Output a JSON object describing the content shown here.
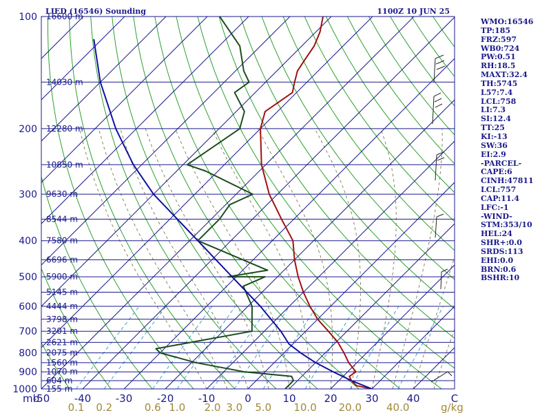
{
  "header": {
    "title": "LIED (16546) Sounding",
    "datetime": "1100Z 10 JUN 25"
  },
  "chart_data": {
    "type": "line",
    "diagram": "skew-T log-P",
    "pressure_axis": {
      "unit_label": "mb",
      "ticks": [
        100,
        200,
        300,
        400,
        500,
        600,
        700,
        800,
        900,
        1000
      ],
      "range": [
        1000,
        100
      ]
    },
    "temperature_axis": {
      "ticks": [
        -50,
        -40,
        -30,
        -20,
        -10,
        0,
        10,
        20,
        30,
        40
      ],
      "tick_labels": [
        "-50",
        "-40",
        "-30",
        "-20",
        "-10",
        "0",
        "10",
        "20",
        "30",
        "40"
      ],
      "last_label": "C"
    },
    "mixing_ratio_axis": {
      "unit_label": "g/kg",
      "ticks": [
        {
          "label": "0.1",
          "value": 0.1
        },
        {
          "label": "0.2",
          "value": 0.2
        },
        {
          "label": "0.6",
          "value": 0.6
        },
        {
          "label": "1.0",
          "value": 1.0
        },
        {
          "label": "2.0",
          "value": 2.0
        },
        {
          "label": "3.0",
          "value": 3.0
        },
        {
          "label": "5.0",
          "value": 5.0
        },
        {
          "label": "10.0",
          "value": 10.0
        },
        {
          "label": "20.0",
          "value": 20.0
        },
        {
          "label": "40.0",
          "value": 40.0
        }
      ]
    },
    "height_labels": [
      {
        "p": 100,
        "label": "16600 m"
      },
      {
        "p": 150,
        "label": "14030 m"
      },
      {
        "p": 200,
        "label": "12280 m"
      },
      {
        "p": 250,
        "label": "10850 m"
      },
      {
        "p": 300,
        "label": "9630 m"
      },
      {
        "p": 350,
        "label": "8544 m"
      },
      {
        "p": 400,
        "label": "7580 m"
      },
      {
        "p": 450,
        "label": "6696 m"
      },
      {
        "p": 500,
        "label": "5900 m"
      },
      {
        "p": 550,
        "label": "5145 m"
      },
      {
        "p": 600,
        "label": "4444 m"
      },
      {
        "p": 650,
        "label": "3798 m"
      },
      {
        "p": 700,
        "label": "3201 m"
      },
      {
        "p": 750,
        "label": "2621 m"
      },
      {
        "p": 800,
        "label": "2075 m"
      },
      {
        "p": 850,
        "label": "1560 m"
      },
      {
        "p": 900,
        "label": "1070 m"
      },
      {
        "p": 950,
        "label": "604 m"
      },
      {
        "p": 1000,
        "label": "155 m"
      }
    ],
    "series": [
      {
        "key": "temperature",
        "color": "#a01010",
        "points": [
          {
            "p": 1000,
            "t": 30.0
          },
          {
            "p": 980,
            "t": 25.5
          },
          {
            "p": 950,
            "t": 23.0
          },
          {
            "p": 925,
            "t": 21.5
          },
          {
            "p": 900,
            "t": 22.0
          },
          {
            "p": 850,
            "t": 18.0
          },
          {
            "p": 800,
            "t": 14.5
          },
          {
            "p": 750,
            "t": 10.5
          },
          {
            "p": 700,
            "t": 5.5
          },
          {
            "p": 650,
            "t": 0.0
          },
          {
            "p": 600,
            "t": -5.0
          },
          {
            "p": 550,
            "t": -10.0
          },
          {
            "p": 500,
            "t": -15.0
          },
          {
            "p": 450,
            "t": -20.0
          },
          {
            "p": 400,
            "t": -25.0
          },
          {
            "p": 350,
            "t": -33.0
          },
          {
            "p": 300,
            "t": -42.0
          },
          {
            "p": 250,
            "t": -51.0
          },
          {
            "p": 200,
            "t": -60.0
          },
          {
            "p": 180,
            "t": -63.0
          },
          {
            "p": 160,
            "t": -61.0
          },
          {
            "p": 150,
            "t": -63.0
          },
          {
            "p": 140,
            "t": -65.0
          },
          {
            "p": 130,
            "t": -66.0
          },
          {
            "p": 120,
            "t": -67.0
          },
          {
            "p": 110,
            "t": -69.0
          },
          {
            "p": 100,
            "t": -72.0
          }
        ]
      },
      {
        "key": "dewpoint",
        "color": "#1a4d1a",
        "points": [
          {
            "p": 1000,
            "t": 9.0
          },
          {
            "p": 950,
            "t": 9.0
          },
          {
            "p": 925,
            "t": 7.5
          },
          {
            "p": 900,
            "t": -5.0
          },
          {
            "p": 850,
            "t": -19.0
          },
          {
            "p": 800,
            "t": -30.0
          },
          {
            "p": 780,
            "t": -32.0
          },
          {
            "p": 700,
            "t": -13.0
          },
          {
            "p": 600,
            "t": -19.0
          },
          {
            "p": 530,
            "t": -26.0
          },
          {
            "p": 500,
            "t": -23.0
          },
          {
            "p": 500,
            "t": -32.0
          },
          {
            "p": 480,
            "t": -24.0
          },
          {
            "p": 400,
            "t": -48.0
          },
          {
            "p": 350,
            "t": -48.0
          },
          {
            "p": 320,
            "t": -49.0
          },
          {
            "p": 300,
            "t": -46.0
          },
          {
            "p": 260,
            "t": -63.0
          },
          {
            "p": 250,
            "t": -69.0
          },
          {
            "p": 200,
            "t": -65.0
          },
          {
            "p": 180,
            "t": -68.0
          },
          {
            "p": 160,
            "t": -75.0
          },
          {
            "p": 150,
            "t": -74.0
          },
          {
            "p": 140,
            "t": -78.0
          },
          {
            "p": 120,
            "t": -85.0
          },
          {
            "p": 100,
            "t": -97.0
          }
        ]
      },
      {
        "key": "parcel",
        "color": "#1010a0",
        "points": [
          {
            "p": 1000,
            "t": 30.0
          },
          {
            "p": 950,
            "t": 23.0
          },
          {
            "p": 900,
            "t": 16.5
          },
          {
            "p": 850,
            "t": 10.0
          },
          {
            "p": 800,
            "t": 4.0
          },
          {
            "p": 757,
            "t": -1.0
          },
          {
            "p": 700,
            "t": -6.0
          },
          {
            "p": 600,
            "t": -17.0
          },
          {
            "p": 500,
            "t": -31.0
          },
          {
            "p": 400,
            "t": -48.0
          },
          {
            "p": 300,
            "t": -70.0
          },
          {
            "p": 250,
            "t": -82.0
          },
          {
            "p": 200,
            "t": -95.0
          },
          {
            "p": 150,
            "t": -110.0
          },
          {
            "p": 115,
            "t": -122.0
          }
        ]
      }
    ],
    "wind_barbs_present": true,
    "colors": {
      "isobar": "#1a1a8c",
      "isotherm": "#1a1a8c",
      "dry_adiabat": "#2aa02a",
      "moist_adiabat": "#7a7a4a",
      "mixing_ratio": "#3aa0d0",
      "frame": "#1a1a8c"
    }
  },
  "indices": [
    "WMO:16546",
    "TP:185",
    "FRZ:597",
    "WB0:724",
    "PW:0.51",
    "RH:18.5",
    "MAXT:32.4",
    "TH:5745",
    "L57:7.4",
    "LCL:758",
    "LI:7.3",
    "SI:12.4",
    "TT:25",
    "KI:-13",
    "SW:36",
    "EI:2.9",
    "-PARCEL-",
    "CAPE:6",
    "CINH:47811",
    "LCL:757",
    "CAP:11.4",
    "LFC:-1",
    "-WIND-",
    "STM:353/10",
    "HEL:24",
    "SHR+:0.0",
    "SRDS:113",
    "EHI:0.0",
    "BRN:0.6",
    "BSHR:10"
  ]
}
